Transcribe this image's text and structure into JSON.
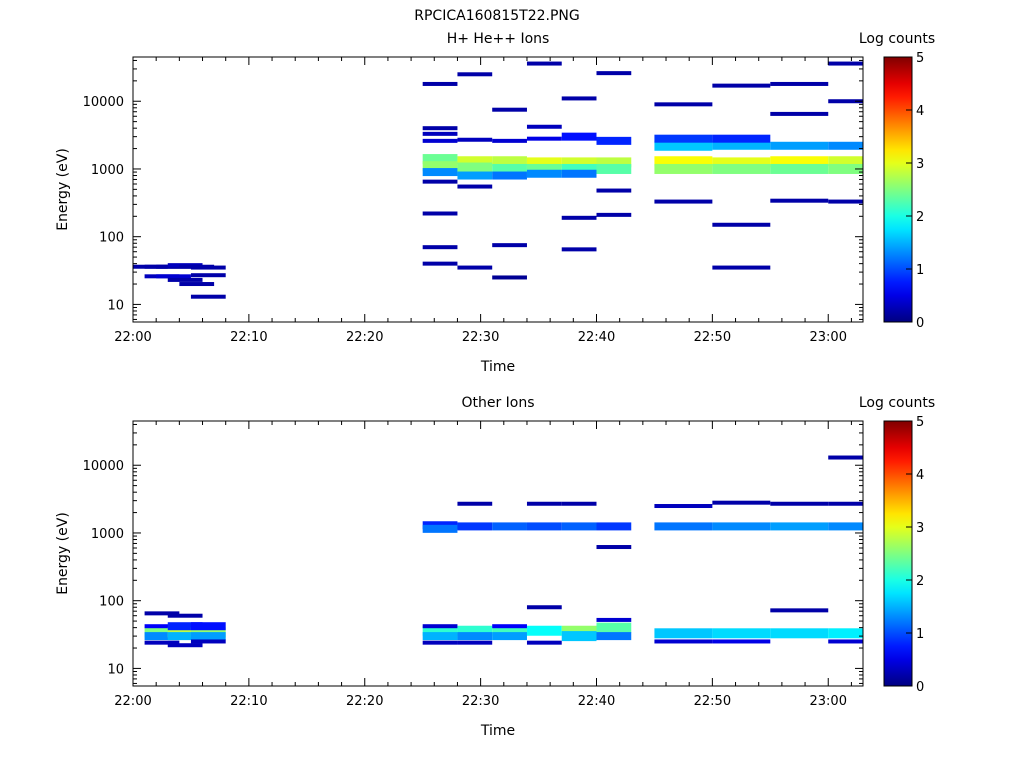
{
  "page": {
    "title": "RPCICA160815T22.PNG"
  },
  "colors": {
    "colormap": "jet",
    "axes": "#000000",
    "background": "#ffffff"
  },
  "chart_data": [
    {
      "type": "heatmap",
      "title": "H+ He++ Ions",
      "xlabel": "Time",
      "ylabel": "Energy (eV)",
      "x_ticks": [
        "22:00",
        "22:10",
        "22:20",
        "22:30",
        "22:40",
        "22:50",
        "23:00"
      ],
      "y_ticks": [
        "10",
        "100",
        "1000",
        "10000"
      ],
      "y_scale": "log",
      "xlim": [
        "22:00",
        "23:03"
      ],
      "ylim": [
        5.5,
        45000
      ],
      "colorbar": {
        "label": "Log counts",
        "ticks": [
          "0",
          "1",
          "2",
          "3",
          "4",
          "5"
        ],
        "range": [
          0,
          5
        ]
      },
      "cells": [
        [
          "22:00",
          36,
          0.2
        ],
        [
          "22:01",
          36,
          0.2
        ],
        [
          "22:02",
          36,
          0.2
        ],
        [
          "22:03",
          38,
          0.3
        ],
        [
          "22:04",
          36,
          0.2
        ],
        [
          "22:05",
          35,
          0.2
        ],
        [
          "22:01",
          26,
          0.3
        ],
        [
          "22:02",
          26,
          0.4
        ],
        [
          "22:03",
          23,
          0.2
        ],
        [
          "22:04",
          20,
          0.2
        ],
        [
          "22:05",
          27,
          0.2
        ],
        [
          "22:05",
          13,
          0.2
        ],
        [
          "22:25",
          1400,
          2.4
        ],
        [
          "22:25",
          1100,
          2.6
        ],
        [
          "22:25",
          900,
          1.3
        ],
        [
          "22:25",
          2600,
          0.4
        ],
        [
          "22:25",
          3300,
          0.3
        ],
        [
          "22:25",
          4000,
          0.2
        ],
        [
          "22:25",
          18000,
          0.2
        ],
        [
          "22:25",
          650,
          0.2
        ],
        [
          "22:25",
          220,
          0.2
        ],
        [
          "22:25",
          70,
          0.2
        ],
        [
          "22:25",
          40,
          0.2
        ],
        [
          "22:28",
          1300,
          2.9
        ],
        [
          "22:28",
          1050,
          2.5
        ],
        [
          "22:28",
          800,
          1.4
        ],
        [
          "22:28",
          2700,
          0.3
        ],
        [
          "22:28",
          25000,
          0.2
        ],
        [
          "22:28",
          550,
          0.2
        ],
        [
          "22:28",
          35,
          0.2
        ],
        [
          "22:31",
          1300,
          2.8
        ],
        [
          "22:31",
          1000,
          2.3
        ],
        [
          "22:31",
          800,
          1.2
        ],
        [
          "22:31",
          2600,
          0.4
        ],
        [
          "22:31",
          7500,
          0.2
        ],
        [
          "22:31",
          75,
          0.2
        ],
        [
          "22:31",
          25,
          0.1
        ],
        [
          "22:34",
          1250,
          3.0
        ],
        [
          "22:34",
          1000,
          2.4
        ],
        [
          "22:34",
          850,
          1.3
        ],
        [
          "22:34",
          2800,
          0.5
        ],
        [
          "22:34",
          36000,
          0.2
        ],
        [
          "22:34",
          4200,
          0.3
        ],
        [
          "22:37",
          1250,
          2.9
        ],
        [
          "22:37",
          1000,
          2.2
        ],
        [
          "22:37",
          850,
          1.2
        ],
        [
          "22:37",
          3000,
          0.7
        ],
        [
          "22:37",
          11000,
          0.2
        ],
        [
          "22:37",
          190,
          0.2
        ],
        [
          "22:37",
          65,
          0.2
        ],
        [
          "22:40",
          1250,
          2.8
        ],
        [
          "22:40",
          1000,
          2.3
        ],
        [
          "22:40",
          2600,
          0.8
        ],
        [
          "22:40",
          26000,
          0.2
        ],
        [
          "22:40",
          480,
          0.2
        ],
        [
          "22:40",
          210,
          0.2
        ],
        [
          "22:45",
          1300,
          3.1
        ],
        [
          "22:45",
          1000,
          2.6
        ],
        [
          "22:45",
          2200,
          1.6
        ],
        [
          "22:45",
          2800,
          0.9
        ],
        [
          "22:45",
          9000,
          0.2
        ],
        [
          "22:45",
          330,
          0.2
        ],
        [
          "22:50",
          1250,
          3.0
        ],
        [
          "22:50",
          1000,
          2.5
        ],
        [
          "22:50",
          2200,
          1.5
        ],
        [
          "22:50",
          2800,
          0.8
        ],
        [
          "22:50",
          17000,
          0.2
        ],
        [
          "22:50",
          150,
          0.2
        ],
        [
          "22:50",
          35,
          0.2
        ],
        [
          "22:55",
          1300,
          3.1
        ],
        [
          "22:55",
          1000,
          2.4
        ],
        [
          "22:55",
          2200,
          1.4
        ],
        [
          "22:55",
          6500,
          0.2
        ],
        [
          "22:55",
          18000,
          0.2
        ],
        [
          "22:55",
          340,
          0.2
        ],
        [
          "23:00",
          1300,
          2.9
        ],
        [
          "23:00",
          1000,
          2.5
        ],
        [
          "23:00",
          2200,
          1.3
        ],
        [
          "23:00",
          10000,
          0.2
        ],
        [
          "23:00",
          36000,
          0.2
        ],
        [
          "23:00",
          330,
          0.2
        ]
      ]
    },
    {
      "type": "heatmap",
      "title": "Other Ions",
      "xlabel": "Time",
      "ylabel": "Energy (eV)",
      "x_ticks": [
        "22:00",
        "22:10",
        "22:20",
        "22:30",
        "22:40",
        "22:50",
        "23:00"
      ],
      "y_ticks": [
        "10",
        "100",
        "1000",
        "10000"
      ],
      "y_scale": "log",
      "xlim": [
        "22:00",
        "23:03"
      ],
      "ylim": [
        5.5,
        45000
      ],
      "colorbar": {
        "label": "Log counts",
        "ticks": [
          "0",
          "1",
          "2",
          "3",
          "4",
          "5"
        ],
        "range": [
          0,
          5
        ]
      },
      "cells": [
        [
          "22:01",
          34,
          2.5
        ],
        [
          "22:01",
          30,
          1.3
        ],
        [
          "22:01",
          42,
          0.6
        ],
        [
          "22:01",
          24,
          0.3
        ],
        [
          "22:01",
          65,
          0.2
        ],
        [
          "22:03",
          34,
          2.8
        ],
        [
          "22:03",
          30,
          1.5
        ],
        [
          "22:03",
          42,
          0.8
        ],
        [
          "22:03",
          22,
          0.3
        ],
        [
          "22:03",
          60,
          0.2
        ],
        [
          "22:05",
          34,
          2.6
        ],
        [
          "22:05",
          30,
          1.4
        ],
        [
          "22:05",
          42,
          0.7
        ],
        [
          "22:05",
          25,
          0.3
        ],
        [
          "22:25",
          1300,
          0.8
        ],
        [
          "22:25",
          1150,
          1.2
        ],
        [
          "22:25",
          36,
          2.1
        ],
        [
          "22:25",
          30,
          1.5
        ],
        [
          "22:25",
          42,
          0.4
        ],
        [
          "22:25",
          24,
          0.3
        ],
        [
          "22:28",
          1250,
          0.9
        ],
        [
          "22:28",
          2700,
          0.2
        ],
        [
          "22:28",
          36,
          2.1
        ],
        [
          "22:28",
          30,
          1.3
        ],
        [
          "22:28",
          24,
          0.3
        ],
        [
          "22:31",
          1250,
          1.1
        ],
        [
          "22:31",
          36,
          2.2
        ],
        [
          "22:31",
          30,
          1.4
        ],
        [
          "22:31",
          42,
          0.6
        ],
        [
          "22:34",
          1250,
          1.0
        ],
        [
          "22:34",
          2700,
          0.2
        ],
        [
          "22:34",
          36,
          1.9
        ],
        [
          "22:34",
          80,
          0.2
        ],
        [
          "22:34",
          24,
          0.3
        ],
        [
          "22:37",
          1250,
          1.1
        ],
        [
          "22:37",
          2700,
          0.2
        ],
        [
          "22:37",
          36,
          2.6
        ],
        [
          "22:37",
          30,
          1.6
        ],
        [
          "22:40",
          1250,
          0.9
        ],
        [
          "22:40",
          620,
          0.2
        ],
        [
          "22:40",
          40,
          2.3
        ],
        [
          "22:40",
          52,
          0.4
        ],
        [
          "22:40",
          30,
          1.2
        ],
        [
          "22:45",
          1250,
          1.2
        ],
        [
          "22:45",
          2500,
          0.3
        ],
        [
          "22:45",
          33,
          1.6
        ],
        [
          "22:45",
          25,
          0.4
        ],
        [
          "22:50",
          1250,
          1.3
        ],
        [
          "22:50",
          2800,
          0.2
        ],
        [
          "22:50",
          33,
          1.7
        ],
        [
          "22:50",
          25,
          0.5
        ],
        [
          "22:55",
          1250,
          1.4
        ],
        [
          "22:55",
          2700,
          0.2
        ],
        [
          "22:55",
          33,
          1.7
        ],
        [
          "22:55",
          72,
          0.2
        ],
        [
          "23:00",
          1250,
          1.3
        ],
        [
          "23:00",
          13000,
          0.2
        ],
        [
          "23:00",
          2700,
          0.2
        ],
        [
          "23:00",
          33,
          1.8
        ],
        [
          "23:00",
          25,
          0.4
        ]
      ]
    }
  ]
}
